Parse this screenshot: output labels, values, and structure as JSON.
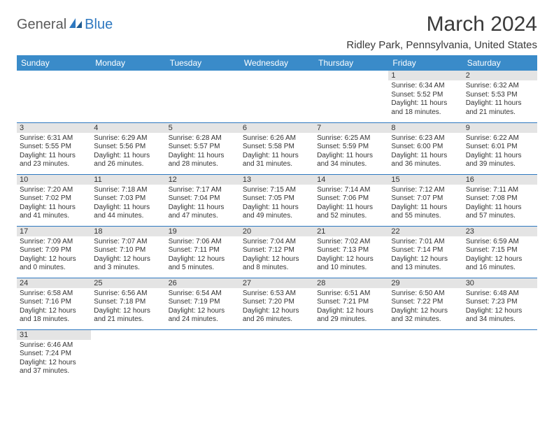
{
  "logo": {
    "part1": "General",
    "part2": "Blue"
  },
  "title": "March 2024",
  "location": "Ridley Park, Pennsylvania, United States",
  "colors": {
    "header_bg": "#3a8bc9",
    "header_text": "#ffffff",
    "daynum_bg": "#e4e4e4",
    "border": "#2e78c0",
    "logo_gray": "#5a5a5a",
    "logo_blue": "#2e78c0"
  },
  "dow": [
    "Sunday",
    "Monday",
    "Tuesday",
    "Wednesday",
    "Thursday",
    "Friday",
    "Saturday"
  ],
  "weeks": [
    [
      null,
      null,
      null,
      null,
      null,
      {
        "n": "1",
        "sr": "Sunrise: 6:34 AM",
        "ss": "Sunset: 5:52 PM",
        "d1": "Daylight: 11 hours",
        "d2": "and 18 minutes."
      },
      {
        "n": "2",
        "sr": "Sunrise: 6:32 AM",
        "ss": "Sunset: 5:53 PM",
        "d1": "Daylight: 11 hours",
        "d2": "and 21 minutes."
      }
    ],
    [
      {
        "n": "3",
        "sr": "Sunrise: 6:31 AM",
        "ss": "Sunset: 5:55 PM",
        "d1": "Daylight: 11 hours",
        "d2": "and 23 minutes."
      },
      {
        "n": "4",
        "sr": "Sunrise: 6:29 AM",
        "ss": "Sunset: 5:56 PM",
        "d1": "Daylight: 11 hours",
        "d2": "and 26 minutes."
      },
      {
        "n": "5",
        "sr": "Sunrise: 6:28 AM",
        "ss": "Sunset: 5:57 PM",
        "d1": "Daylight: 11 hours",
        "d2": "and 28 minutes."
      },
      {
        "n": "6",
        "sr": "Sunrise: 6:26 AM",
        "ss": "Sunset: 5:58 PM",
        "d1": "Daylight: 11 hours",
        "d2": "and 31 minutes."
      },
      {
        "n": "7",
        "sr": "Sunrise: 6:25 AM",
        "ss": "Sunset: 5:59 PM",
        "d1": "Daylight: 11 hours",
        "d2": "and 34 minutes."
      },
      {
        "n": "8",
        "sr": "Sunrise: 6:23 AM",
        "ss": "Sunset: 6:00 PM",
        "d1": "Daylight: 11 hours",
        "d2": "and 36 minutes."
      },
      {
        "n": "9",
        "sr": "Sunrise: 6:22 AM",
        "ss": "Sunset: 6:01 PM",
        "d1": "Daylight: 11 hours",
        "d2": "and 39 minutes."
      }
    ],
    [
      {
        "n": "10",
        "sr": "Sunrise: 7:20 AM",
        "ss": "Sunset: 7:02 PM",
        "d1": "Daylight: 11 hours",
        "d2": "and 41 minutes."
      },
      {
        "n": "11",
        "sr": "Sunrise: 7:18 AM",
        "ss": "Sunset: 7:03 PM",
        "d1": "Daylight: 11 hours",
        "d2": "and 44 minutes."
      },
      {
        "n": "12",
        "sr": "Sunrise: 7:17 AM",
        "ss": "Sunset: 7:04 PM",
        "d1": "Daylight: 11 hours",
        "d2": "and 47 minutes."
      },
      {
        "n": "13",
        "sr": "Sunrise: 7:15 AM",
        "ss": "Sunset: 7:05 PM",
        "d1": "Daylight: 11 hours",
        "d2": "and 49 minutes."
      },
      {
        "n": "14",
        "sr": "Sunrise: 7:14 AM",
        "ss": "Sunset: 7:06 PM",
        "d1": "Daylight: 11 hours",
        "d2": "and 52 minutes."
      },
      {
        "n": "15",
        "sr": "Sunrise: 7:12 AM",
        "ss": "Sunset: 7:07 PM",
        "d1": "Daylight: 11 hours",
        "d2": "and 55 minutes."
      },
      {
        "n": "16",
        "sr": "Sunrise: 7:11 AM",
        "ss": "Sunset: 7:08 PM",
        "d1": "Daylight: 11 hours",
        "d2": "and 57 minutes."
      }
    ],
    [
      {
        "n": "17",
        "sr": "Sunrise: 7:09 AM",
        "ss": "Sunset: 7:09 PM",
        "d1": "Daylight: 12 hours",
        "d2": "and 0 minutes."
      },
      {
        "n": "18",
        "sr": "Sunrise: 7:07 AM",
        "ss": "Sunset: 7:10 PM",
        "d1": "Daylight: 12 hours",
        "d2": "and 3 minutes."
      },
      {
        "n": "19",
        "sr": "Sunrise: 7:06 AM",
        "ss": "Sunset: 7:11 PM",
        "d1": "Daylight: 12 hours",
        "d2": "and 5 minutes."
      },
      {
        "n": "20",
        "sr": "Sunrise: 7:04 AM",
        "ss": "Sunset: 7:12 PM",
        "d1": "Daylight: 12 hours",
        "d2": "and 8 minutes."
      },
      {
        "n": "21",
        "sr": "Sunrise: 7:02 AM",
        "ss": "Sunset: 7:13 PM",
        "d1": "Daylight: 12 hours",
        "d2": "and 10 minutes."
      },
      {
        "n": "22",
        "sr": "Sunrise: 7:01 AM",
        "ss": "Sunset: 7:14 PM",
        "d1": "Daylight: 12 hours",
        "d2": "and 13 minutes."
      },
      {
        "n": "23",
        "sr": "Sunrise: 6:59 AM",
        "ss": "Sunset: 7:15 PM",
        "d1": "Daylight: 12 hours",
        "d2": "and 16 minutes."
      }
    ],
    [
      {
        "n": "24",
        "sr": "Sunrise: 6:58 AM",
        "ss": "Sunset: 7:16 PM",
        "d1": "Daylight: 12 hours",
        "d2": "and 18 minutes."
      },
      {
        "n": "25",
        "sr": "Sunrise: 6:56 AM",
        "ss": "Sunset: 7:18 PM",
        "d1": "Daylight: 12 hours",
        "d2": "and 21 minutes."
      },
      {
        "n": "26",
        "sr": "Sunrise: 6:54 AM",
        "ss": "Sunset: 7:19 PM",
        "d1": "Daylight: 12 hours",
        "d2": "and 24 minutes."
      },
      {
        "n": "27",
        "sr": "Sunrise: 6:53 AM",
        "ss": "Sunset: 7:20 PM",
        "d1": "Daylight: 12 hours",
        "d2": "and 26 minutes."
      },
      {
        "n": "28",
        "sr": "Sunrise: 6:51 AM",
        "ss": "Sunset: 7:21 PM",
        "d1": "Daylight: 12 hours",
        "d2": "and 29 minutes."
      },
      {
        "n": "29",
        "sr": "Sunrise: 6:50 AM",
        "ss": "Sunset: 7:22 PM",
        "d1": "Daylight: 12 hours",
        "d2": "and 32 minutes."
      },
      {
        "n": "30",
        "sr": "Sunrise: 6:48 AM",
        "ss": "Sunset: 7:23 PM",
        "d1": "Daylight: 12 hours",
        "d2": "and 34 minutes."
      }
    ],
    [
      {
        "n": "31",
        "sr": "Sunrise: 6:46 AM",
        "ss": "Sunset: 7:24 PM",
        "d1": "Daylight: 12 hours",
        "d2": "and 37 minutes."
      },
      null,
      null,
      null,
      null,
      null,
      null
    ]
  ]
}
